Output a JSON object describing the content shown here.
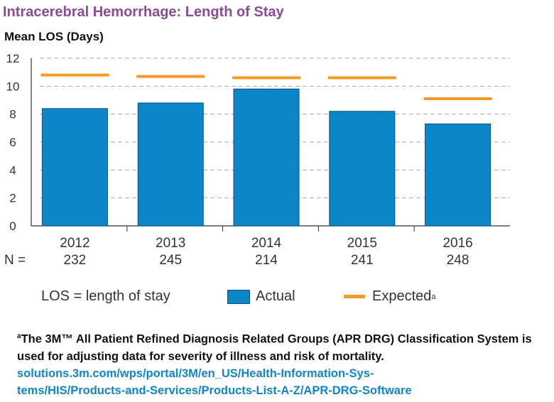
{
  "title": "Intracerebral Hemorrhage: Length of Stay",
  "n_label": "N =",
  "legend": {
    "los": "LOS = length of stay",
    "actual": "Actual",
    "expected": "Expected",
    "expected_sup": "a"
  },
  "footnote": {
    "marker": "a",
    "text": "The 3M™ All Patient Refined Diagnosis Related Groups (APR DRG) Classification System is used for adjusting data for severity of illness and risk of mortality.",
    "link_line1": "solutions.3m.com/wps/portal/3M/en_US/Health-Information-Sys-",
    "link_line2": "tems/HIS/Products-and-Services/Products-List-A-Z/APR-DRG-Software"
  },
  "colors": {
    "title": "#8b4c95",
    "actual": "#0b86c8",
    "actual_border": "#0a4f7a",
    "expected": "#f59b25",
    "link": "#1185c6",
    "grid": "#aaaaaa"
  },
  "chart_data": {
    "type": "bar",
    "ylabel": "Mean LOS (Days)",
    "xlabel": "",
    "ylim": [
      0,
      12
    ],
    "yticks": [
      0,
      2,
      4,
      6,
      8,
      10,
      12
    ],
    "grid": true,
    "categories": [
      "2012",
      "2013",
      "2014",
      "2015",
      "2016"
    ],
    "n_values": [
      "232",
      "245",
      "214",
      "241",
      "248"
    ],
    "series": [
      {
        "name": "Actual",
        "kind": "bar",
        "values": [
          8.4,
          8.8,
          9.8,
          8.2,
          7.3
        ]
      },
      {
        "name": "Expected",
        "kind": "line-marker",
        "values": [
          10.8,
          10.7,
          10.6,
          10.6,
          9.1
        ]
      }
    ]
  }
}
